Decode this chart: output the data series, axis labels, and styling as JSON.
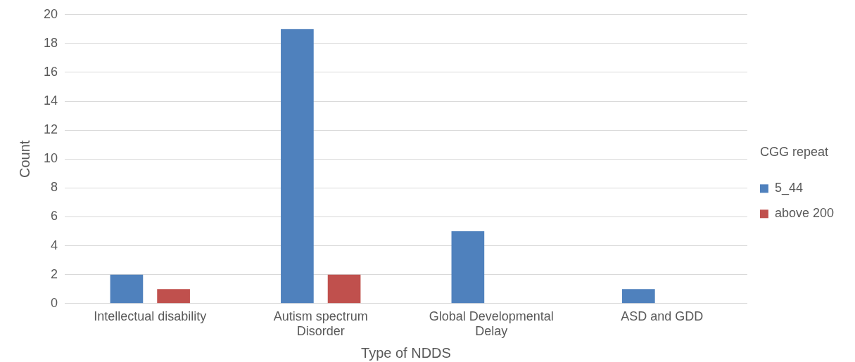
{
  "chart_data": {
    "type": "bar",
    "xlabel": "Type of NDDS",
    "ylabel": "Count",
    "legend_title": "CGG repeat",
    "categories": [
      "Intellectual disability",
      "Autism spectrum Disorder",
      "Global Developmental Delay",
      "ASD and GDD"
    ],
    "series": [
      {
        "name": "5_44",
        "color": "#4f81bd",
        "values": [
          2,
          19,
          5,
          1
        ]
      },
      {
        "name": "above 200",
        "color": "#c0504d",
        "values": [
          1,
          2,
          null,
          null
        ]
      }
    ],
    "ylim": [
      0,
      20
    ],
    "yticks": [
      0,
      2,
      4,
      6,
      8,
      10,
      12,
      14,
      16,
      18,
      20
    ],
    "grid": "y",
    "legend": "right"
  }
}
